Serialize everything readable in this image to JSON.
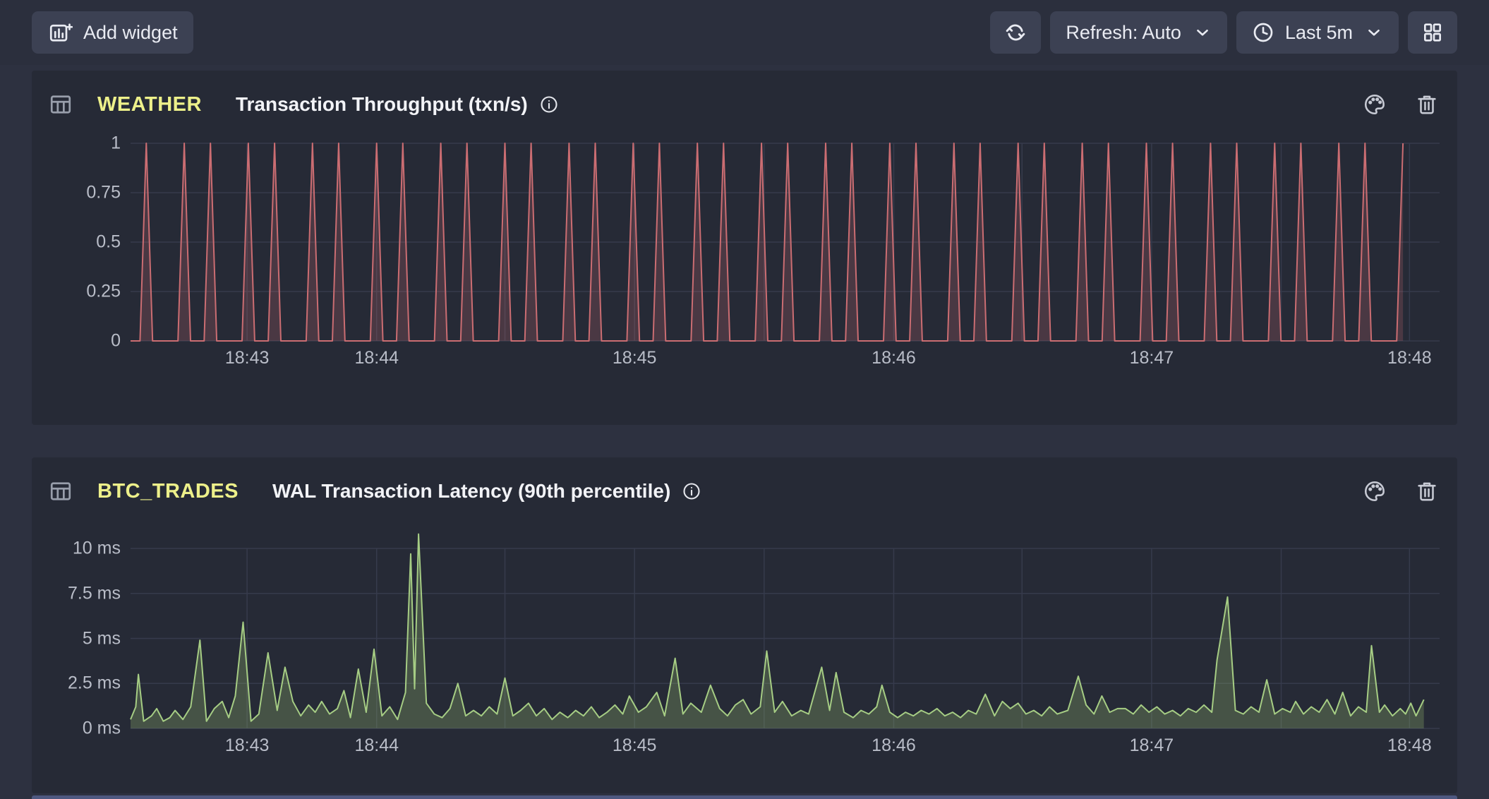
{
  "toolbar": {
    "add_widget_label": "Add widget",
    "refresh_mode_label": "Refresh: Auto",
    "time_range_label": "Last 5m",
    "icons": [
      "add-widget-chart-plus-icon",
      "refresh-icon",
      "chevron-down-icon",
      "clock-icon",
      "grid-layout-icon"
    ]
  },
  "panels": [
    {
      "table": "WEATHER",
      "title": "Transaction Throughput (txn/s)",
      "header_icons": [
        "table-icon",
        "info-icon",
        "palette-icon",
        "trash-icon"
      ]
    },
    {
      "table": "BTC_TRADES",
      "title": "WAL Transaction Latency (90th percentile)",
      "header_icons": [
        "table-icon",
        "info-icon",
        "palette-icon",
        "trash-icon"
      ]
    }
  ],
  "colors": {
    "toolbar_bg": "#2b2f3d",
    "button_bg": "#3c4153",
    "page_bg": "#2d3140",
    "panel_bg": "#262a36",
    "gridline": "#363b4c",
    "axis_text": "#b9bdc8",
    "table_name_yellow": "#edf08a",
    "throughput_line_red": "#cb6d72",
    "latency_line_green": "#a6cd84"
  },
  "chart_data": [
    {
      "type": "line",
      "style": "spike-train",
      "title": "Transaction Throughput (txn/s)",
      "table": "WEATHER",
      "xlabel": "",
      "ylabel": "txn/s",
      "ylim": [
        0,
        1
      ],
      "y_plot_max": 1,
      "grid": true,
      "line_color": "#cb6d72",
      "fill_color": "rgba(203,109,114,0.22)",
      "y_ticks": [
        {
          "value": 1,
          "label": "1"
        },
        {
          "value": 0.75,
          "label": "0.75"
        },
        {
          "value": 0.5,
          "label": "0.5"
        },
        {
          "value": 0.25,
          "label": "0.25"
        },
        {
          "value": 0,
          "label": "0"
        }
      ],
      "x_ticks": [
        {
          "f": 0.089,
          "label": "18:43"
        },
        {
          "f": 0.188,
          "label": "18:44"
        },
        {
          "f": 0.385,
          "label": "18:45"
        },
        {
          "f": 0.583,
          "label": "18:46"
        },
        {
          "f": 0.78,
          "label": "18:47"
        },
        {
          "f": 0.977,
          "label": "18:48"
        }
      ],
      "x_gridlines": [
        0.089,
        0.188,
        0.286,
        0.385,
        0.484,
        0.583,
        0.681,
        0.78,
        0.879,
        0.977
      ],
      "spike_amplitude": 1,
      "spike_half_width_f": 0.0048,
      "spikes_f": [
        0.012,
        0.041,
        0.061,
        0.09,
        0.11,
        0.139,
        0.159,
        0.188,
        0.208,
        0.237,
        0.257,
        0.286,
        0.306,
        0.335,
        0.355,
        0.384,
        0.404,
        0.433,
        0.453,
        0.482,
        0.502,
        0.531,
        0.551,
        0.58,
        0.6,
        0.629,
        0.649,
        0.678,
        0.698,
        0.727,
        0.747,
        0.776,
        0.796,
        0.825,
        0.845,
        0.874,
        0.894,
        0.923,
        0.943,
        0.972
      ]
    },
    {
      "type": "area",
      "title": "WAL Transaction Latency (90th percentile)",
      "table": "BTC_TRADES",
      "xlabel": "",
      "ylabel": "ms",
      "ylim": [
        0,
        11.3
      ],
      "y_plot_max": 10,
      "grid": true,
      "line_color": "#a6cd84",
      "fill_color": "rgba(146,178,110,0.30)",
      "y_ticks": [
        {
          "value": 10,
          "label": "10 ms"
        },
        {
          "value": 7.5,
          "label": "7.5 ms"
        },
        {
          "value": 5,
          "label": "5 ms"
        },
        {
          "value": 2.5,
          "label": "2.5 ms"
        },
        {
          "value": 0,
          "label": "0 ms"
        }
      ],
      "x_ticks": [
        {
          "f": 0.089,
          "label": "18:43"
        },
        {
          "f": 0.188,
          "label": "18:44"
        },
        {
          "f": 0.385,
          "label": "18:45"
        },
        {
          "f": 0.583,
          "label": "18:46"
        },
        {
          "f": 0.78,
          "label": "18:47"
        },
        {
          "f": 0.977,
          "label": "18:48"
        }
      ],
      "x_gridlines": [
        0.089,
        0.188,
        0.286,
        0.385,
        0.484,
        0.583,
        0.681,
        0.78,
        0.879,
        0.977
      ],
      "points_f_ms": [
        [
          0.0,
          0.5
        ],
        [
          0.004,
          1.2
        ],
        [
          0.006,
          3.0
        ],
        [
          0.01,
          0.4
        ],
        [
          0.016,
          0.7
        ],
        [
          0.02,
          1.1
        ],
        [
          0.025,
          0.4
        ],
        [
          0.03,
          0.6
        ],
        [
          0.034,
          1.0
        ],
        [
          0.04,
          0.5
        ],
        [
          0.046,
          1.2
        ],
        [
          0.053,
          4.9
        ],
        [
          0.058,
          0.4
        ],
        [
          0.064,
          1.1
        ],
        [
          0.07,
          1.5
        ],
        [
          0.075,
          0.6
        ],
        [
          0.08,
          1.8
        ],
        [
          0.086,
          5.9
        ],
        [
          0.092,
          0.4
        ],
        [
          0.098,
          0.8
        ],
        [
          0.105,
          4.2
        ],
        [
          0.112,
          1.0
        ],
        [
          0.118,
          3.4
        ],
        [
          0.124,
          1.5
        ],
        [
          0.13,
          0.7
        ],
        [
          0.136,
          1.3
        ],
        [
          0.141,
          0.9
        ],
        [
          0.146,
          1.5
        ],
        [
          0.152,
          0.8
        ],
        [
          0.158,
          1.1
        ],
        [
          0.163,
          2.1
        ],
        [
          0.168,
          0.6
        ],
        [
          0.174,
          3.3
        ],
        [
          0.18,
          0.9
        ],
        [
          0.186,
          4.4
        ],
        [
          0.192,
          0.7
        ],
        [
          0.198,
          1.2
        ],
        [
          0.204,
          0.5
        ],
        [
          0.21,
          2.0
        ],
        [
          0.214,
          9.7
        ],
        [
          0.217,
          2.2
        ],
        [
          0.22,
          10.8
        ],
        [
          0.226,
          1.4
        ],
        [
          0.232,
          0.8
        ],
        [
          0.238,
          0.6
        ],
        [
          0.244,
          1.1
        ],
        [
          0.25,
          2.5
        ],
        [
          0.256,
          0.7
        ],
        [
          0.262,
          1.0
        ],
        [
          0.268,
          0.7
        ],
        [
          0.274,
          1.2
        ],
        [
          0.28,
          0.8
        ],
        [
          0.286,
          2.8
        ],
        [
          0.292,
          0.7
        ],
        [
          0.298,
          1.0
        ],
        [
          0.304,
          1.4
        ],
        [
          0.31,
          0.7
        ],
        [
          0.316,
          1.1
        ],
        [
          0.322,
          0.5
        ],
        [
          0.328,
          0.9
        ],
        [
          0.334,
          0.6
        ],
        [
          0.34,
          1.0
        ],
        [
          0.346,
          0.7
        ],
        [
          0.352,
          1.2
        ],
        [
          0.358,
          0.6
        ],
        [
          0.364,
          0.9
        ],
        [
          0.37,
          1.3
        ],
        [
          0.376,
          0.8
        ],
        [
          0.381,
          1.8
        ],
        [
          0.388,
          0.9
        ],
        [
          0.394,
          1.2
        ],
        [
          0.402,
          2.0
        ],
        [
          0.408,
          0.7
        ],
        [
          0.416,
          3.9
        ],
        [
          0.422,
          0.8
        ],
        [
          0.428,
          1.4
        ],
        [
          0.436,
          0.9
        ],
        [
          0.443,
          2.4
        ],
        [
          0.45,
          1.1
        ],
        [
          0.456,
          0.7
        ],
        [
          0.462,
          1.3
        ],
        [
          0.468,
          1.6
        ],
        [
          0.474,
          0.8
        ],
        [
          0.481,
          1.2
        ],
        [
          0.486,
          4.3
        ],
        [
          0.492,
          0.9
        ],
        [
          0.498,
          1.5
        ],
        [
          0.505,
          0.7
        ],
        [
          0.512,
          1.0
        ],
        [
          0.518,
          0.8
        ],
        [
          0.528,
          3.4
        ],
        [
          0.534,
          1.0
        ],
        [
          0.539,
          3.1
        ],
        [
          0.545,
          0.9
        ],
        [
          0.552,
          0.6
        ],
        [
          0.558,
          1.0
        ],
        [
          0.564,
          0.8
        ],
        [
          0.57,
          1.2
        ],
        [
          0.574,
          2.4
        ],
        [
          0.58,
          0.9
        ],
        [
          0.586,
          0.6
        ],
        [
          0.592,
          0.9
        ],
        [
          0.598,
          0.7
        ],
        [
          0.604,
          1.0
        ],
        [
          0.61,
          0.8
        ],
        [
          0.616,
          1.1
        ],
        [
          0.622,
          0.7
        ],
        [
          0.628,
          0.9
        ],
        [
          0.634,
          0.6
        ],
        [
          0.64,
          1.0
        ],
        [
          0.646,
          0.8
        ],
        [
          0.653,
          1.9
        ],
        [
          0.66,
          0.7
        ],
        [
          0.666,
          1.5
        ],
        [
          0.672,
          1.1
        ],
        [
          0.678,
          1.4
        ],
        [
          0.684,
          0.8
        ],
        [
          0.69,
          1.0
        ],
        [
          0.696,
          0.7
        ],
        [
          0.702,
          1.2
        ],
        [
          0.708,
          0.8
        ],
        [
          0.716,
          1.0
        ],
        [
          0.724,
          2.9
        ],
        [
          0.73,
          1.3
        ],
        [
          0.736,
          0.8
        ],
        [
          0.742,
          1.8
        ],
        [
          0.748,
          0.9
        ],
        [
          0.754,
          1.1
        ],
        [
          0.76,
          1.1
        ],
        [
          0.766,
          0.8
        ],
        [
          0.772,
          1.3
        ],
        [
          0.778,
          0.9
        ],
        [
          0.784,
          1.2
        ],
        [
          0.79,
          0.8
        ],
        [
          0.796,
          1.0
        ],
        [
          0.802,
          0.7
        ],
        [
          0.808,
          1.1
        ],
        [
          0.814,
          0.9
        ],
        [
          0.82,
          1.3
        ],
        [
          0.826,
          0.9
        ],
        [
          0.83,
          3.8
        ],
        [
          0.838,
          7.3
        ],
        [
          0.844,
          1.0
        ],
        [
          0.85,
          0.8
        ],
        [
          0.856,
          1.2
        ],
        [
          0.862,
          0.9
        ],
        [
          0.868,
          2.7
        ],
        [
          0.874,
          0.8
        ],
        [
          0.88,
          1.1
        ],
        [
          0.886,
          0.9
        ],
        [
          0.89,
          1.5
        ],
        [
          0.896,
          0.8
        ],
        [
          0.902,
          1.2
        ],
        [
          0.908,
          0.9
        ],
        [
          0.914,
          1.6
        ],
        [
          0.92,
          0.8
        ],
        [
          0.926,
          2.0
        ],
        [
          0.932,
          0.7
        ],
        [
          0.938,
          1.2
        ],
        [
          0.944,
          0.9
        ],
        [
          0.948,
          4.6
        ],
        [
          0.954,
          0.9
        ],
        [
          0.958,
          1.3
        ],
        [
          0.964,
          0.7
        ],
        [
          0.97,
          1.1
        ],
        [
          0.974,
          0.8
        ],
        [
          0.978,
          1.4
        ],
        [
          0.982,
          0.7
        ],
        [
          0.988,
          1.6
        ]
      ]
    }
  ]
}
